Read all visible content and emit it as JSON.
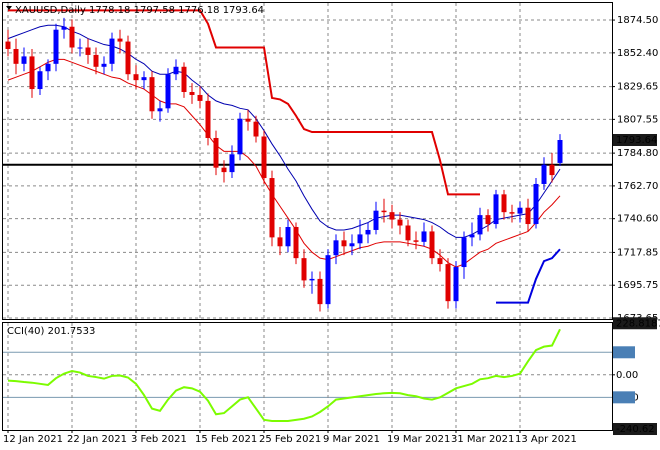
{
  "chart_data": {
    "type": "candlestick",
    "title": "XAUUSD,Daily",
    "categories": [
      "12 Jan 2021",
      null,
      null,
      null,
      null,
      null,
      null,
      null,
      "22 Jan 2021",
      null,
      null,
      null,
      null,
      null,
      null,
      null,
      "3 Feb 2021",
      null,
      null,
      null,
      null,
      null,
      null,
      null,
      "15 Feb 2021",
      null,
      null,
      null,
      null,
      null,
      null,
      null,
      "25 Feb 2021",
      null,
      null,
      null,
      null,
      null,
      null,
      null,
      "9 Mar 2021",
      null,
      null,
      null,
      null,
      null,
      null,
      null,
      "19 Mar 2021",
      null,
      null,
      null,
      null,
      null,
      null,
      null,
      "31 Mar 2021",
      null,
      null,
      null,
      null,
      null,
      null,
      null,
      "13 Apr 2021",
      null,
      null,
      null,
      null,
      null
    ],
    "open": [
      1860,
      1855,
      1845,
      1850,
      1828,
      1840,
      1845,
      1868,
      1870,
      1856,
      1856,
      1851,
      1843,
      1845,
      1862,
      1860,
      1838,
      1834,
      1836,
      1813,
      1815,
      1838,
      1843,
      1826,
      1824,
      1820,
      1795,
      1775,
      1772,
      1784,
      1808,
      1806,
      1796,
      1768,
      1728,
      1722,
      1735,
      1714,
      1699,
      1700,
      1683,
      1716,
      1726,
      1722,
      1724,
      1730,
      1733,
      1746,
      1745,
      1740,
      1736,
      1726,
      1725,
      1732,
      1714,
      1710,
      1685,
      1708,
      1728,
      1730,
      1743,
      1737,
      1757,
      1745,
      1744,
      1748,
      1737,
      1764,
      1777,
      1778.18
    ],
    "high": [
      1868,
      1862,
      1856,
      1855,
      1843,
      1848,
      1872,
      1876,
      1875,
      1862,
      1862,
      1856,
      1850,
      1866,
      1868,
      1864,
      1844,
      1840,
      1840,
      1820,
      1842,
      1848,
      1846,
      1832,
      1830,
      1825,
      1800,
      1780,
      1790,
      1812,
      1814,
      1810,
      1800,
      1773,
      1735,
      1740,
      1738,
      1720,
      1705,
      1705,
      1720,
      1730,
      1732,
      1730,
      1740,
      1738,
      1752,
      1754,
      1750,
      1745,
      1740,
      1732,
      1738,
      1736,
      1720,
      1714,
      1712,
      1732,
      1738,
      1748,
      1747,
      1760,
      1760,
      1750,
      1752,
      1754,
      1768,
      1782,
      1785,
      1797.58
    ],
    "low": [
      1850,
      1838,
      1840,
      1822,
      1824,
      1834,
      1840,
      1862,
      1852,
      1850,
      1845,
      1838,
      1838,
      1840,
      1852,
      1834,
      1828,
      1828,
      1808,
      1806,
      1812,
      1834,
      1822,
      1818,
      1815,
      1790,
      1770,
      1765,
      1768,
      1780,
      1800,
      1792,
      1764,
      1722,
      1716,
      1718,
      1710,
      1694,
      1690,
      1678,
      1680,
      1710,
      1716,
      1716,
      1720,
      1724,
      1730,
      1738,
      1734,
      1730,
      1722,
      1720,
      1722,
      1710,
      1705,
      1680,
      1680,
      1700,
      1722,
      1726,
      1732,
      1734,
      1740,
      1738,
      1738,
      1732,
      1734,
      1760,
      1765,
      1776.18
    ],
    "close": [
      1855,
      1845,
      1850,
      1828,
      1840,
      1845,
      1868,
      1870,
      1856,
      1856,
      1851,
      1843,
      1845,
      1862,
      1860,
      1838,
      1834,
      1836,
      1813,
      1815,
      1838,
      1843,
      1826,
      1824,
      1820,
      1795,
      1775,
      1772,
      1784,
      1808,
      1806,
      1796,
      1768,
      1728,
      1722,
      1735,
      1714,
      1699,
      1700,
      1683,
      1716,
      1726,
      1722,
      1724,
      1730,
      1733,
      1746,
      1745,
      1740,
      1736,
      1726,
      1725,
      1732,
      1714,
      1710,
      1685,
      1708,
      1728,
      1730,
      1743,
      1737,
      1757,
      1745,
      1744,
      1748,
      1737,
      1764,
      1777,
      1770,
      1793.64
    ],
    "up_color": "#0000ff",
    "down_color": "#e00000",
    "ylim": [
      1672.3,
      1886
    ],
    "yticks": [
      {
        "value": 1874.5,
        "label": "1874.50"
      },
      {
        "value": 1852.4,
        "label": "1852.40"
      },
      1829.65,
      1807.55,
      {
        "value": 1784.8,
        "label": "1784.80"
      },
      {
        "value": 1762.7,
        "label": "1762.70"
      },
      {
        "value": 1740.6,
        "label": "1740.60"
      },
      1717.85,
      1695.75,
      1673.65
    ],
    "grid": true,
    "hline": 1777,
    "lines": [
      {
        "color": "#0000b0",
        "width": 1,
        "values": [
          1862,
          1864,
          1866,
          1868,
          1870,
          1871,
          1871,
          1870,
          1867,
          1865,
          1862,
          1860,
          1858,
          1857,
          1855,
          1852,
          1848,
          1845,
          1840,
          1838,
          1838,
          1840,
          1839,
          1834,
          1830,
          1824,
          1820,
          1818,
          1817,
          1815,
          1814,
          1808,
          1800,
          1791,
          1783,
          1774,
          1766,
          1756,
          1747,
          1739,
          1735,
          1733,
          1733,
          1734,
          1736,
          1738,
          1741,
          1742,
          1743,
          1743,
          1742,
          1741,
          1740,
          1738,
          1735,
          1731,
          1728,
          1728,
          1730,
          1733,
          1736,
          1740,
          1741,
          1742,
          1743,
          1744,
          1750,
          1758,
          1766,
          1774
        ]
      },
      {
        "color": "#e00000",
        "width": 1,
        "values": [
          1834,
          1836,
          1838,
          1840,
          1843,
          1846,
          1848,
          1848,
          1846,
          1844,
          1842,
          1840,
          1838,
          1836,
          1835,
          1832,
          1830,
          1828,
          1824,
          1820,
          1818,
          1818,
          1816,
          1810,
          1804,
          1797,
          1790,
          1786,
          1786,
          1786,
          1782,
          1776,
          1766,
          1757,
          1749,
          1741,
          1733,
          1724,
          1718,
          1714,
          1713,
          1715,
          1717,
          1719,
          1721,
          1722,
          1724,
          1725,
          1725,
          1725,
          1724,
          1723,
          1722,
          1720,
          1716,
          1711,
          1708,
          1710,
          1714,
          1718,
          1720,
          1724,
          1726,
          1728,
          1730,
          1732,
          1738,
          1745,
          1750,
          1756
        ]
      },
      {
        "color": "#e00000",
        "width": 2,
        "values": [
          1881,
          1881,
          1881,
          1881,
          1881,
          1881,
          1881,
          1881,
          1881,
          1881,
          1881,
          1881,
          1881,
          1881,
          1881,
          1881,
          1881,
          1881,
          1881,
          1881,
          1881,
          1881,
          1881,
          1881,
          1881,
          1872,
          1856,
          1856,
          1856,
          1856,
          1856,
          1856,
          1856,
          1822,
          1821,
          1818,
          1810,
          1801,
          1799,
          1799,
          1799,
          1799,
          1799,
          1799,
          1799,
          1799,
          1799,
          1799,
          1799,
          1799,
          1799,
          1799,
          1799,
          1799,
          1780,
          1757,
          1757,
          1757,
          1757,
          1757,
          null,
          null,
          null,
          null,
          null,
          null,
          null,
          null,
          null,
          null
        ]
      },
      {
        "color": "#0000e0",
        "width": 2,
        "values": [
          null,
          null,
          null,
          null,
          null,
          null,
          null,
          null,
          null,
          null,
          null,
          null,
          null,
          null,
          null,
          null,
          null,
          null,
          null,
          null,
          null,
          null,
          null,
          null,
          null,
          null,
          null,
          null,
          null,
          null,
          null,
          null,
          null,
          null,
          null,
          null,
          null,
          null,
          null,
          null,
          null,
          null,
          null,
          null,
          null,
          null,
          null,
          null,
          null,
          null,
          null,
          null,
          null,
          null,
          null,
          null,
          null,
          null,
          null,
          null,
          null,
          1684,
          1684,
          1684,
          1684,
          1684,
          1700,
          1712,
          1714,
          1720
        ]
      }
    ],
    "cci": {
      "title": "CCI(40)",
      "color": "#7cfc00",
      "values": [
        -26,
        -28,
        -32,
        -35,
        -40,
        -45,
        -15,
        5,
        17,
        10,
        -5,
        -10,
        -17,
        -5,
        -3,
        -12,
        -40,
        -90,
        -150,
        -160,
        -110,
        -70,
        -55,
        -60,
        -75,
        -115,
        -175,
        -170,
        -140,
        -110,
        -100,
        -150,
        -200,
        -205,
        -205,
        -205,
        -200,
        -195,
        -185,
        -165,
        -140,
        -110,
        -105,
        -100,
        -95,
        -90,
        -85,
        -82,
        -80,
        -82,
        -90,
        -95,
        -105,
        -110,
        -100,
        -80,
        -60,
        -50,
        -40,
        -20,
        -15,
        -5,
        -10,
        -5,
        5,
        60,
        110,
        125,
        130,
        201.7533
      ],
      "ylim": [
        -245,
        230
      ],
      "yticks": [
        228.8187,
        100,
        {
          "value": 0,
          "label": "0.00"
        },
        -100,
        -240.62
      ],
      "levels": [
        100,
        -100
      ]
    }
  }
}
